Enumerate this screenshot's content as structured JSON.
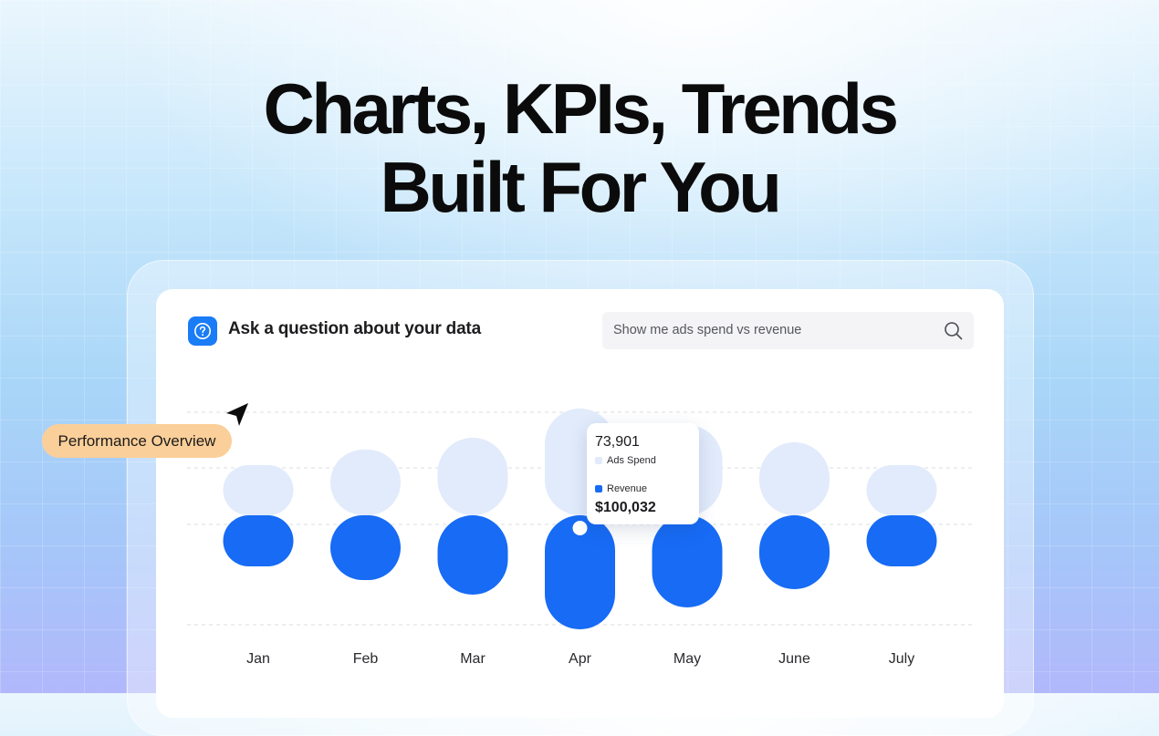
{
  "hero": {
    "line1": "Charts, KPIs, Trends",
    "line2": "Built For You"
  },
  "panel": {
    "question_label": "Ask a question about your data",
    "question_icon": "question-circle-icon",
    "search": {
      "value": "Show me ads spend vs revenue",
      "icon": "search-icon"
    }
  },
  "badge": {
    "label": "Performance Overview",
    "color": "#fbcf99"
  },
  "cursor_icon": "navigation-arrow-icon",
  "tooltip": {
    "ads_value": "73,901",
    "ads_label": "Ads Spend",
    "revenue_label": "Revenue",
    "revenue_value": "$100,032"
  },
  "colors": {
    "ads_spend": "#e1ebfb",
    "revenue": "#176bf5",
    "accent": "#1a7cf6"
  },
  "chart_data": {
    "type": "bar",
    "categories": [
      "Jan",
      "Feb",
      "Mar",
      "Apr",
      "May",
      "June",
      "July"
    ],
    "series": [
      {
        "name": "Ads Spend",
        "values": [
          0.55,
          0.72,
          0.85,
          1.17,
          0.99,
          0.8,
          0.55
        ]
      },
      {
        "name": "Revenue",
        "values": [
          0.56,
          0.71,
          0.87,
          1.25,
          1.01,
          0.81,
          0.56
        ]
      }
    ],
    "highlighted_category": "Apr",
    "grid": true,
    "axes_values_shown": false
  }
}
